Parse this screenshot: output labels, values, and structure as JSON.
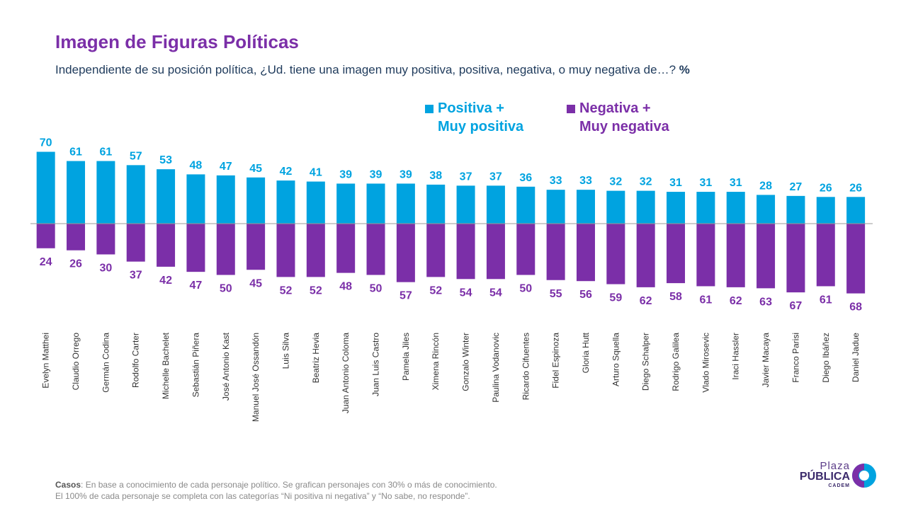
{
  "title": "Imagen de Figuras Políticas",
  "subtitle": "Independiente de su posición política, ¿Ud. tiene una imagen muy positiva, positiva, negativa, o muy negativa de…?",
  "subtitle_unit": "%",
  "legend": {
    "positive_line1": "Positiva +",
    "positive_line2": "Muy positiva",
    "negative_line1": "Negativa +",
    "negative_line2": "Muy negativa"
  },
  "colors": {
    "positive": "#00A3E0",
    "negative": "#7B2FA8",
    "title": "#7B2FA8"
  },
  "footer": {
    "casos_label": "Casos",
    "line1": ": En base a conocimiento de cada personaje político. Se grafican personajes con 30% o más de conocimiento.",
    "line2": "El 100% de cada personaje se completa con las categorías “Ni positiva ni negativa” y “No sabe, no responde”."
  },
  "logo": {
    "line1": "Plaza",
    "line2": "PÚBLICA",
    "line3": "CADEM"
  },
  "chart_data": {
    "type": "bar",
    "categories": [
      "Evelyn Matthei",
      "Claudio Orrego",
      "Germán Codina",
      "Rodolfo Carter",
      "Michelle Bachelet",
      "Sebastián Piñera",
      "José Antonio Kast",
      "Manuel José Ossandón",
      "Luis Silva",
      "Beatriz Hevia",
      "Juan Antonio Coloma",
      "Juan Luis Castro",
      "Pamela Jiles",
      "Ximena Rincón",
      "Gonzalo Winter",
      "Paulina Vodanovic",
      "Ricardo Cifuentes",
      "Fidel Espinoza",
      "Gloria Hutt",
      "Arturo Squella",
      "Diego Schalper",
      "Rodrigo Galilea",
      "Vlado Mirosevic",
      "Iraci Hassler",
      "Javier Macaya",
      "Franco Parisi",
      "Diego Ibáñez",
      "Daniel Jadue"
    ],
    "series": [
      {
        "name": "Positiva + Muy positiva",
        "values": [
          70,
          61,
          61,
          57,
          53,
          48,
          47,
          45,
          42,
          41,
          39,
          39,
          39,
          38,
          37,
          37,
          36,
          33,
          33,
          32,
          32,
          31,
          31,
          31,
          28,
          27,
          26,
          26
        ]
      },
      {
        "name": "Negativa + Muy negativa",
        "values": [
          24,
          26,
          30,
          37,
          42,
          47,
          50,
          45,
          52,
          52,
          48,
          50,
          57,
          52,
          54,
          54,
          50,
          55,
          56,
          59,
          62,
          58,
          61,
          62,
          63,
          67,
          61,
          68
        ]
      }
    ]
  }
}
